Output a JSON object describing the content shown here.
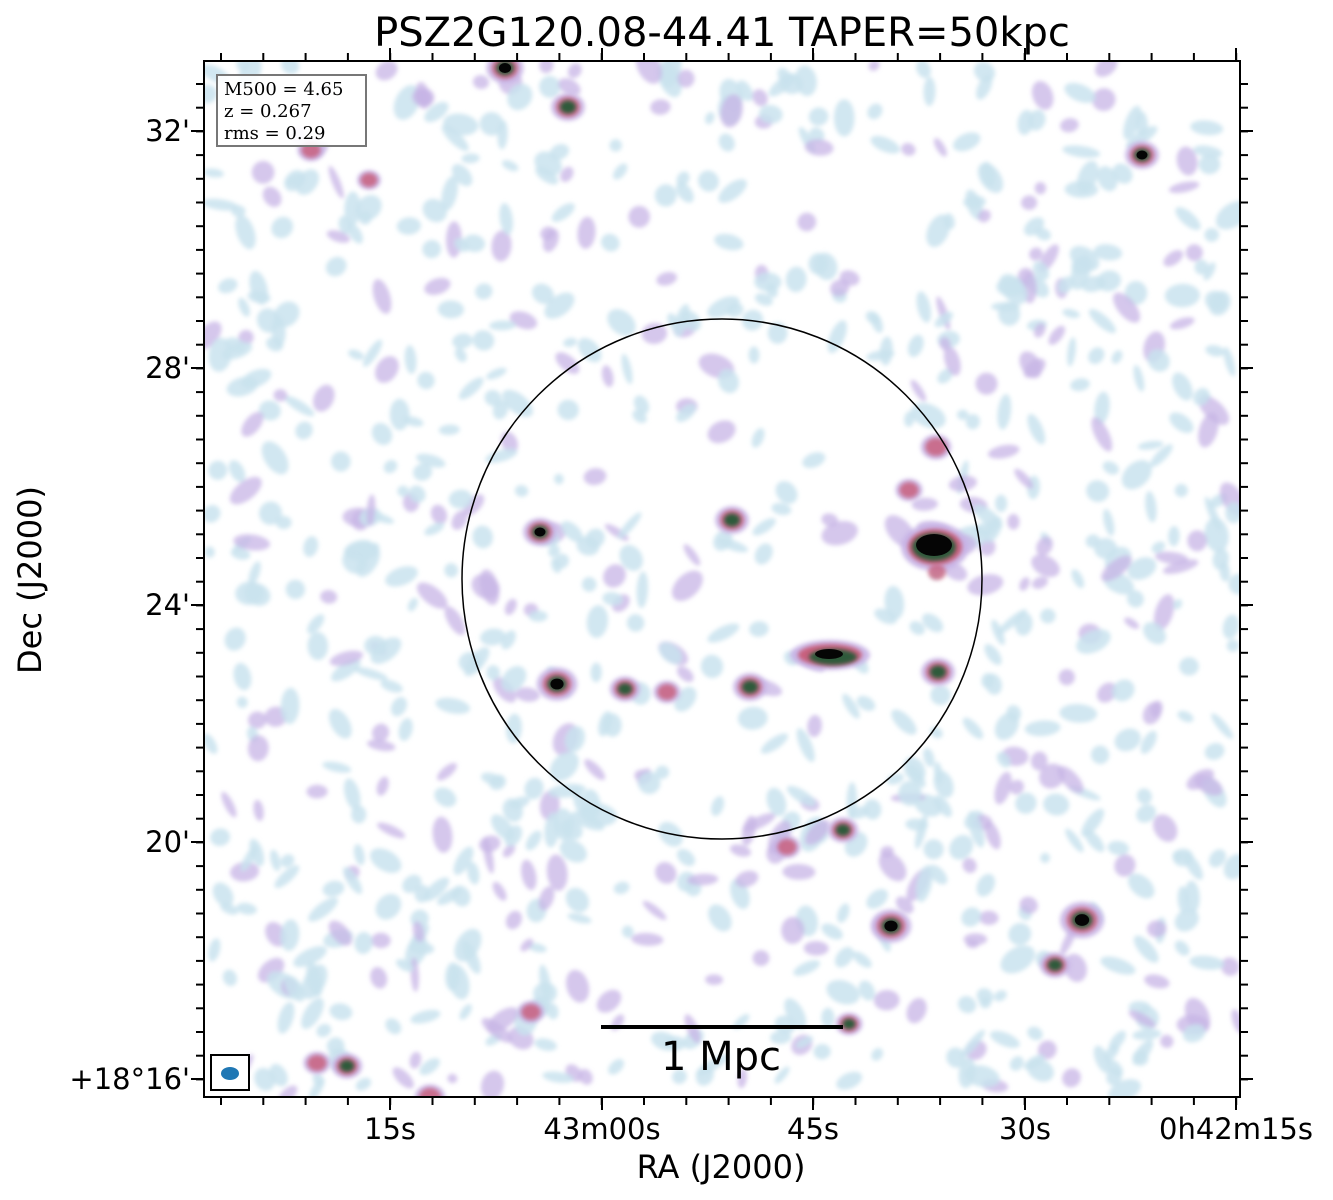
{
  "figure": {
    "title": "PSZ2G120.08-44.41 TAPER=50kpc",
    "info_box": {
      "m500": "M500 = 4.65",
      "redshift": "z = 0.267",
      "rms": "rms = 0.29"
    },
    "scale_bar_label": "1 Mpc",
    "x_axis": {
      "title": "RA (J2000)",
      "tick_labels": [
        "15s",
        "43m00s",
        "45s",
        "30s",
        "0h42m15s"
      ]
    },
    "y_axis": {
      "title": "Dec (J2000)",
      "tick_labels": [
        "32'",
        "28'",
        "24'",
        "20'",
        "+18°16'"
      ]
    },
    "colors": {
      "noise_light": "#c9e3ef",
      "noise_lavender": "#c7b4e6",
      "source_pink": "#c8607e",
      "source_green": "#2e5a3a",
      "source_core": "#050505",
      "beam": "#1f77b4"
    },
    "image_type": "radio continuum map",
    "overlays": [
      "circle",
      "scale bar",
      "beam ellipse"
    ]
  }
}
